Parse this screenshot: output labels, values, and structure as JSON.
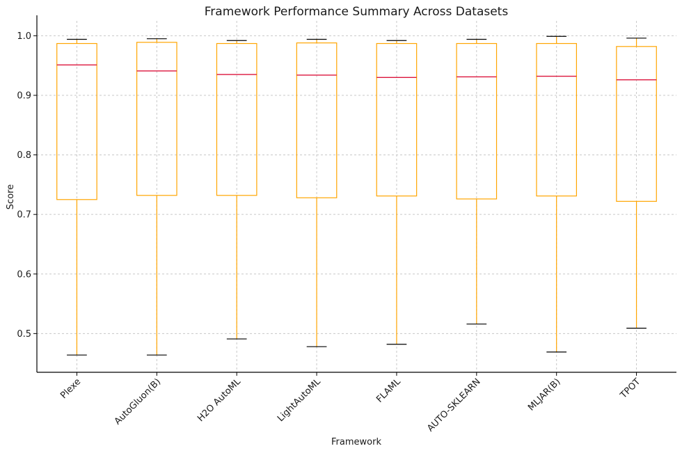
{
  "chart_data": {
    "type": "box",
    "title": "Framework Performance Summary Across Datasets",
    "xlabel": "Framework",
    "ylabel": "Score",
    "ylim": [
      0.435,
      1.025
    ],
    "yticks": [
      0.5,
      0.6,
      0.7,
      0.8,
      0.9,
      1.0
    ],
    "ytick_labels": [
      "0.5",
      "0.6",
      "0.7",
      "0.8",
      "0.9",
      "1.0"
    ],
    "grid": true,
    "colors": {
      "box": "#FFA500",
      "median": "#DC143C",
      "cap": "#000000"
    },
    "categories": [
      "Plexe",
      "AutoGluon(B)",
      "H2O AutoML",
      "LightAutoML",
      "FLAML",
      "AUTO-SKLEARN",
      "MLJAR(B)",
      "TPOT"
    ],
    "boxes": [
      {
        "whislo": 0.464,
        "q1": 0.725,
        "med": 0.951,
        "q3": 0.987,
        "whishi": 0.994
      },
      {
        "whislo": 0.464,
        "q1": 0.732,
        "med": 0.941,
        "q3": 0.989,
        "whishi": 0.995
      },
      {
        "whislo": 0.491,
        "q1": 0.732,
        "med": 0.935,
        "q3": 0.987,
        "whishi": 0.992
      },
      {
        "whislo": 0.478,
        "q1": 0.728,
        "med": 0.934,
        "q3": 0.988,
        "whishi": 0.994
      },
      {
        "whislo": 0.482,
        "q1": 0.731,
        "med": 0.93,
        "q3": 0.987,
        "whishi": 0.992
      },
      {
        "whislo": 0.516,
        "q1": 0.726,
        "med": 0.931,
        "q3": 0.987,
        "whishi": 0.994
      },
      {
        "whislo": 0.469,
        "q1": 0.731,
        "med": 0.932,
        "q3": 0.987,
        "whishi": 0.999
      },
      {
        "whislo": 0.509,
        "q1": 0.722,
        "med": 0.926,
        "q3": 0.982,
        "whishi": 0.996
      }
    ]
  }
}
